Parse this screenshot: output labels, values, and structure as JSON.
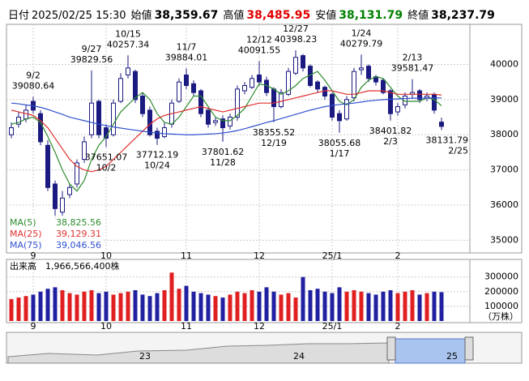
{
  "header": {
    "date_label": "日付",
    "datetime": "2025/02/25 15:30",
    "open_label": "始値",
    "open": "38,359.67",
    "high_label": "高値",
    "high": "38,485.95",
    "low_label": "安値",
    "low": "38,131.79",
    "close_label": "終値",
    "close": "38,237.79"
  },
  "chart_data": [
    {
      "type": "candlestick",
      "categories": [
        null,
        null,
        null,
        "9",
        null,
        null,
        null,
        null,
        null,
        null,
        null,
        null,
        null,
        "10",
        null,
        null,
        null,
        null,
        null,
        null,
        null,
        null,
        null,
        null,
        "11",
        null,
        null,
        null,
        null,
        null,
        null,
        null,
        null,
        null,
        "12",
        null,
        null,
        null,
        null,
        null,
        null,
        null,
        null,
        null,
        "25/1",
        null,
        null,
        null,
        null,
        null,
        null,
        null,
        null,
        "2",
        null,
        null,
        null,
        null,
        null,
        null
      ],
      "open": [
        38000,
        38300,
        38450,
        38950,
        38600,
        37700,
        36600,
        35800,
        36300,
        36600,
        37300,
        38000,
        38950,
        38200,
        38000,
        38950,
        39700,
        39800,
        39100,
        38700,
        38100,
        37950,
        38300,
        38950,
        39700,
        39450,
        39250,
        38700,
        38350,
        38450,
        38250,
        38500,
        39250,
        39350,
        39700,
        39550,
        39300,
        38800,
        39150,
        39750,
        40250,
        39950,
        39500,
        39350,
        39150,
        38600,
        38450,
        39050,
        39850,
        39950,
        39650,
        39550,
        39250,
        38650,
        38850,
        39150,
        39250,
        39050,
        39150,
        38359.67
      ],
      "high": [
        38350,
        38650,
        38850,
        39080.64,
        38700,
        37850,
        36700,
        36400,
        36600,
        37300,
        37950,
        39829.56,
        39000,
        38300,
        39000,
        39750,
        40257.34,
        39850,
        39200,
        38800,
        38200,
        38350,
        39000,
        39600,
        39884.01,
        39550,
        39300,
        38750,
        38500,
        38550,
        38600,
        39400,
        39500,
        39700,
        40091.55,
        39650,
        39350,
        39300,
        39900,
        40398.23,
        40300,
        40000,
        39550,
        39400,
        39200,
        38700,
        39100,
        39900,
        40279.79,
        40000,
        39700,
        39600,
        39300,
        38900,
        39200,
        39581.47,
        39300,
        39200,
        39200,
        38485.95
      ],
      "low": [
        37900,
        38200,
        38350,
        38600,
        37700,
        36400,
        35600,
        35700,
        36200,
        36500,
        37200,
        37900,
        37900,
        37651.07,
        37950,
        38900,
        39600,
        38900,
        38500,
        37950,
        37712.19,
        37900,
        38200,
        38900,
        39300,
        39100,
        38500,
        38200,
        38250,
        37801.62,
        38150,
        38400,
        39150,
        39300,
        39400,
        39100,
        38355.52,
        38750,
        39100,
        39700,
        39800,
        39350,
        39200,
        39000,
        38400,
        38055.68,
        38400,
        38950,
        39700,
        39500,
        39400,
        39150,
        38401.82,
        38550,
        38750,
        39050,
        38900,
        38950,
        38600,
        38131.79
      ],
      "close": [
        38200,
        38500,
        38700,
        38700,
        37800,
        36500,
        35900,
        36200,
        36500,
        37200,
        37800,
        38900,
        38000,
        37900,
        38900,
        39600,
        39900,
        39000,
        38600,
        38000,
        37900,
        38200,
        38900,
        39500,
        39400,
        39200,
        38600,
        38300,
        38400,
        38200,
        38500,
        39300,
        39400,
        39600,
        39500,
        39200,
        38800,
        39200,
        39800,
        40200,
        39900,
        39400,
        39300,
        39100,
        38500,
        38400,
        39000,
        39800,
        39900,
        39600,
        39500,
        39200,
        38600,
        38800,
        39100,
        39200,
        39000,
        39100,
        38700,
        38237.79
      ],
      "series": [
        {
          "name": "MA(5)",
          "color": "#2e8b2e",
          "values": [
            38300,
            38350,
            38450,
            38500,
            38350,
            37950,
            37500,
            37000,
            36600,
            36400,
            36700,
            37300,
            37700,
            37950,
            38300,
            38650,
            38850,
            39050,
            39200,
            39000,
            38600,
            38350,
            38300,
            38500,
            38800,
            39100,
            39100,
            38800,
            38500,
            38400,
            38400,
            38550,
            38750,
            39100,
            39450,
            39400,
            39300,
            39150,
            39250,
            39400,
            39600,
            39700,
            39800,
            39550,
            39250,
            38950,
            38850,
            39000,
            39350,
            39550,
            39650,
            39600,
            39350,
            39100,
            38950,
            38950,
            38950,
            39050,
            39000,
            38825.56
          ],
          "value_labels": [
            null,
            null,
            null,
            null,
            null,
            null,
            null,
            null,
            null,
            null,
            null,
            null,
            null,
            null,
            null,
            null,
            null,
            null,
            null,
            null,
            null,
            null,
            null,
            null,
            null,
            null,
            null,
            null,
            null,
            null,
            null,
            null,
            null,
            null,
            null,
            null,
            null,
            null,
            null,
            null,
            null,
            null,
            null,
            null,
            null,
            null,
            null,
            null,
            null,
            null,
            null,
            null,
            null,
            null,
            null,
            null,
            null,
            null,
            null,
            "38,825.56"
          ]
        },
        {
          "name": "MA(25)",
          "color": "#e03030",
          "values": [
            38700,
            38650,
            38600,
            38550,
            38400,
            38200,
            37900,
            37600,
            37300,
            37100,
            37000,
            36950,
            37000,
            37100,
            37300,
            37500,
            37700,
            37900,
            38100,
            38300,
            38450,
            38550,
            38600,
            38650,
            38700,
            38750,
            38800,
            38750,
            38700,
            38650,
            38700,
            38750,
            38800,
            38850,
            38900,
            38900,
            38900,
            38950,
            39000,
            39050,
            39100,
            39150,
            39200,
            39250,
            39250,
            39200,
            39150,
            39150,
            39200,
            39250,
            39250,
            39250,
            39200,
            39150,
            39150,
            39150,
            39150,
            39150,
            39150,
            39129.31
          ],
          "value_labels": [
            null,
            null,
            null,
            null,
            null,
            null,
            null,
            null,
            null,
            null,
            null,
            null,
            null,
            null,
            null,
            null,
            null,
            null,
            null,
            null,
            null,
            null,
            null,
            null,
            null,
            null,
            null,
            null,
            null,
            null,
            null,
            null,
            null,
            null,
            null,
            null,
            null,
            null,
            null,
            null,
            null,
            null,
            null,
            null,
            null,
            null,
            null,
            null,
            null,
            null,
            null,
            null,
            null,
            null,
            null,
            null,
            null,
            null,
            null,
            "39,129.31"
          ]
        },
        {
          "name": "MA(75)",
          "color": "#3050d0",
          "values": [
            38900,
            38880,
            38850,
            38820,
            38780,
            38720,
            38650,
            38580,
            38500,
            38450,
            38400,
            38350,
            38300,
            38260,
            38220,
            38190,
            38160,
            38130,
            38100,
            38070,
            38050,
            38030,
            38020,
            38010,
            38000,
            38000,
            38010,
            38020,
            38030,
            38050,
            38080,
            38120,
            38170,
            38230,
            38290,
            38350,
            38400,
            38460,
            38520,
            38580,
            38640,
            38700,
            38750,
            38800,
            38830,
            38860,
            38880,
            38900,
            38930,
            38960,
            38980,
            39000,
            39010,
            39020,
            39030,
            39040,
            39040,
            39045,
            39046,
            39046.56
          ],
          "value_labels": [
            null,
            null,
            null,
            null,
            null,
            null,
            null,
            null,
            null,
            null,
            null,
            null,
            null,
            null,
            null,
            null,
            null,
            null,
            null,
            null,
            null,
            null,
            null,
            null,
            null,
            null,
            null,
            null,
            null,
            null,
            null,
            null,
            null,
            null,
            null,
            null,
            null,
            null,
            null,
            null,
            null,
            null,
            null,
            null,
            null,
            null,
            null,
            null,
            null,
            null,
            null,
            null,
            null,
            null,
            null,
            null,
            null,
            null,
            null,
            "39,046.56"
          ]
        }
      ],
      "up_color": "#ffffff",
      "down_color": "#1a1a80",
      "annotations": [
        {
          "date": "9/2",
          "value": 39080.64
        },
        {
          "date": "9/27",
          "value": 39829.56
        },
        {
          "date": "10/15",
          "value": 40257.34
        },
        {
          "date": "11/7",
          "value": 39884.01
        },
        {
          "date": "12/12",
          "value": 40091.55
        },
        {
          "date": "12/27",
          "value": 40398.23
        },
        {
          "date": "1/24",
          "value": 40279.79
        },
        {
          "date": "2/13",
          "value": 39581.47
        },
        {
          "date": "10/2",
          "value": 37651.07
        },
        {
          "date": "10/24",
          "value": 37712.19
        },
        {
          "date": "11/28",
          "value": 37801.62
        },
        {
          "date": "12/19",
          "value": 38355.52
        },
        {
          "date": "1/17",
          "value": 38055.68
        },
        {
          "date": "2/3",
          "value": 38401.82
        },
        {
          "date": "2/25",
          "value": 38131.79
        }
      ],
      "ylim": [
        34640,
        41140
      ],
      "yticks": [
        35000,
        36000,
        37000,
        38000,
        39000,
        40000
      ],
      "grid": true
    },
    {
      "type": "bar",
      "title": "出来高　1,966,566,400株",
      "unit": "（万株）",
      "values": [
        150000,
        160000,
        170000,
        180000,
        200000,
        220000,
        230000,
        210000,
        190000,
        180000,
        200000,
        210000,
        190000,
        200000,
        180000,
        190000,
        200000,
        210000,
        180000,
        170000,
        190000,
        210000,
        330000,
        220000,
        240000,
        200000,
        190000,
        180000,
        170000,
        160000,
        180000,
        200000,
        190000,
        210000,
        200000,
        230000,
        200000,
        180000,
        190000,
        160000,
        300000,
        210000,
        220000,
        200000,
        190000,
        230000,
        200000,
        210000,
        200000,
        190000,
        180000,
        200000,
        210000,
        190000,
        200000,
        210000,
        180000,
        190000,
        200000,
        196656.64
      ],
      "up_color": "#e02020",
      "down_color": "#2020a0",
      "ylim": [
        0,
        420000
      ],
      "yticks": [
        100000,
        200000,
        300000
      ],
      "grid": true
    }
  ],
  "navigator": {
    "labels": [
      "23",
      "24",
      "25"
    ]
  }
}
